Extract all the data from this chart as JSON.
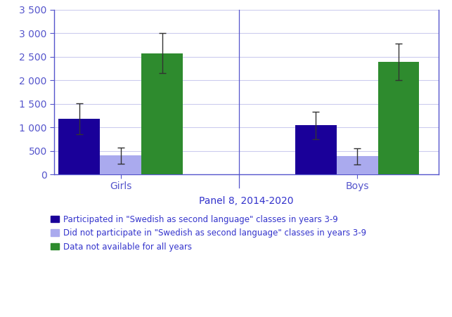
{
  "groups": [
    "Girls",
    "Boys"
  ],
  "series": [
    {
      "label": "Participated in \"Swedish as second language\" classes in years 3-9",
      "color": "#1a0099",
      "values": [
        1175,
        1040
      ],
      "errors": [
        330,
        290
      ]
    },
    {
      "label": "Did not participate in \"Swedish as second language\" classes in years 3-9",
      "color": "#aaaaee",
      "values": [
        400,
        385
      ],
      "errors": [
        175,
        175
      ]
    },
    {
      "label": "Data not available for all years",
      "color": "#2e8b2e",
      "values": [
        2575,
        2390
      ],
      "errors": [
        430,
        390
      ]
    }
  ],
  "ylim": [
    0,
    3500
  ],
  "yticks": [
    0,
    500,
    1000,
    1500,
    2000,
    2500,
    3000,
    3500
  ],
  "ytick_labels": [
    "0",
    "500",
    "1 000",
    "1 500",
    "2 000",
    "2 500",
    "3 000",
    "3 500"
  ],
  "panel_label": "Panel 8, 2014-2020",
  "axis_color": "#5555cc",
  "grid_color": "#ccccee",
  "text_color": "#3333cc",
  "bar_width": 0.28,
  "background_color": "#ffffff",
  "legend_fontsize": 8.5,
  "tick_fontsize": 10,
  "label_fontsize": 10,
  "group_positions": [
    1.0,
    2.6
  ],
  "xlim": [
    0.55,
    3.15
  ]
}
